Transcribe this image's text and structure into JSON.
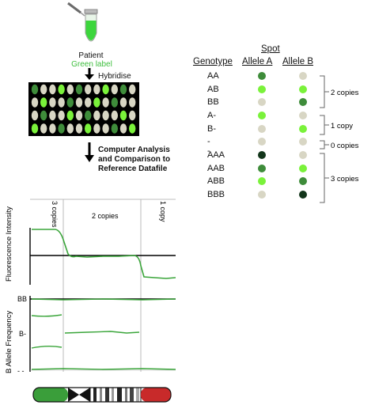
{
  "left": {
    "patient_label": "Patient",
    "green_label": "Green label",
    "step1": "Hybridise",
    "step2_line1": "Computer Analysis",
    "step2_line2": "and Comparison to",
    "step2_line3": "Reference Datafile",
    "section_3copies": "3 copies",
    "section_2copies": "2 copies",
    "section_1copy": "1 copy",
    "ylabel_intensity": "Fluorescence Intensity",
    "ylabel_baf": "B Allele Frequency",
    "baf_tick_BB": "BB",
    "baf_tick_B": "B-",
    "baf_tick_dash": "- -"
  },
  "array_dots": [
    [
      "g2",
      "b1",
      "d1",
      "g1",
      "b1",
      "g2",
      "d1",
      "b1",
      "g1",
      "d1",
      "g2",
      "b1"
    ],
    [
      "b1",
      "g1",
      "d1",
      "b1",
      "g2",
      "d1",
      "b1",
      "g1",
      "d1",
      "g2",
      "b1",
      "d1"
    ],
    [
      "d1",
      "g2",
      "b1",
      "d1",
      "g1",
      "b1",
      "g2",
      "d1",
      "b1",
      "d1",
      "g1",
      "b1"
    ],
    [
      "g1",
      "b1",
      "d1",
      "g2",
      "b1",
      "d1",
      "g1",
      "b1",
      "d1",
      "g2",
      "b1",
      "g1"
    ]
  ],
  "genotype_table": {
    "spot_title": "Spot",
    "col_genotype": "Genotype",
    "col_allele_a": "Allele A",
    "col_allele_b": "Allele B",
    "rows": [
      {
        "genotype": "AA",
        "a": "mid",
        "b": "beige"
      },
      {
        "genotype": "AB",
        "a": "light",
        "b": "light"
      },
      {
        "genotype": "BB",
        "a": "beige",
        "b": "mid"
      },
      {
        "genotype": "A-",
        "a": "light",
        "b": "beige"
      },
      {
        "genotype": "B-",
        "a": "beige",
        "b": "light"
      },
      {
        "genotype": "- -",
        "a": "beige",
        "b": "beige"
      },
      {
        "genotype": "AAA",
        "a": "dark",
        "b": "beige"
      },
      {
        "genotype": "AAB",
        "a": "mid",
        "b": "light"
      },
      {
        "genotype": "ABB",
        "a": "light",
        "b": "mid"
      },
      {
        "genotype": "BBB",
        "a": "beige",
        "b": "dark"
      }
    ],
    "groups": [
      {
        "label": "2 copies"
      },
      {
        "label": "1 copy"
      },
      {
        "label": "0 copies"
      },
      {
        "label": "3 copies"
      }
    ]
  },
  "colors": {
    "dark": "#12351a",
    "mid": "#3e8c3a",
    "light": "#7af23a",
    "beige": "#d8d6c4",
    "plot_line": "#3aa53a",
    "chrom_green": "#3a9e3a",
    "chrom_red": "#c82a2a",
    "tube_green": "#3cd63c"
  }
}
